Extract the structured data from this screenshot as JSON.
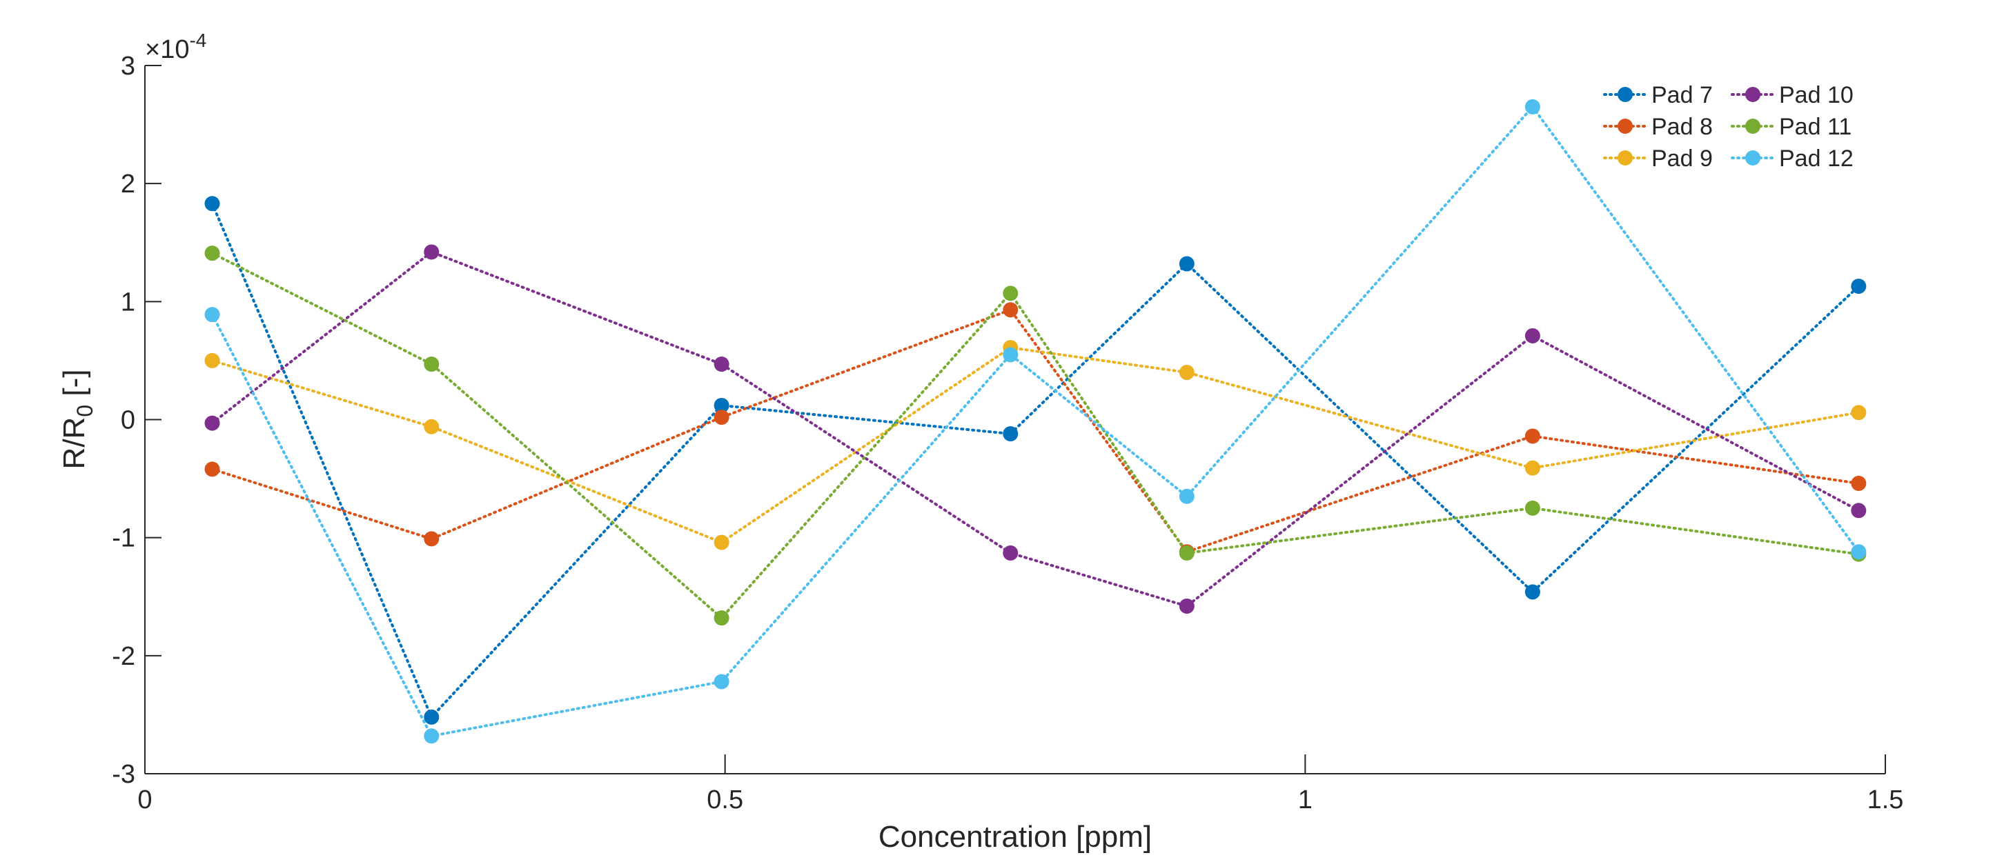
{
  "chart_data": {
    "type": "line",
    "xlabel": "Concentration [ppm]",
    "ylabel_main": "R/R",
    "ylabel_sub": "0",
    "ylabel_tail": " [-]",
    "y_exponent_prefix": "×10",
    "y_exponent_power": "-4",
    "xlim": [
      0,
      1.5
    ],
    "ylim": [
      -3,
      3
    ],
    "xticks": [
      0,
      0.5,
      1,
      1.5
    ],
    "xtick_labels": [
      "0",
      "0.5",
      "1",
      "1.5"
    ],
    "yticks": [
      -3,
      -2,
      -1,
      0,
      1,
      2,
      3
    ],
    "ytick_labels": [
      "-3",
      "-2",
      "-1",
      "0",
      "1",
      "2",
      "3"
    ],
    "grid": false,
    "legend_position": "top-right",
    "line_style": "dotted",
    "x": [
      0.058,
      0.247,
      0.497,
      0.746,
      0.898,
      1.196,
      1.477
    ],
    "series": [
      {
        "name": "Pad 7",
        "color": "#0072BD",
        "values": [
          1.83,
          -2.52,
          0.12,
          -0.12,
          1.32,
          -1.46,
          1.13
        ]
      },
      {
        "name": "Pad 8",
        "color": "#D95319",
        "values": [
          -0.42,
          -1.01,
          0.02,
          0.93,
          -1.12,
          -0.14,
          -0.54
        ]
      },
      {
        "name": "Pad 9",
        "color": "#EDB120",
        "values": [
          0.5,
          -0.06,
          -1.04,
          0.61,
          0.4,
          -0.41,
          0.06
        ]
      },
      {
        "name": "Pad 10",
        "color": "#7E2F8E",
        "values": [
          -0.03,
          1.42,
          0.47,
          -1.13,
          -1.58,
          0.71,
          -0.77
        ]
      },
      {
        "name": "Pad 11",
        "color": "#77AC30",
        "values": [
          1.41,
          0.47,
          -1.68,
          1.07,
          -1.13,
          -0.75,
          -1.14
        ]
      },
      {
        "name": "Pad 12",
        "color": "#4DBEEE",
        "values": [
          0.89,
          -2.68,
          -2.22,
          0.55,
          -0.65,
          2.65,
          -1.12
        ]
      }
    ]
  }
}
